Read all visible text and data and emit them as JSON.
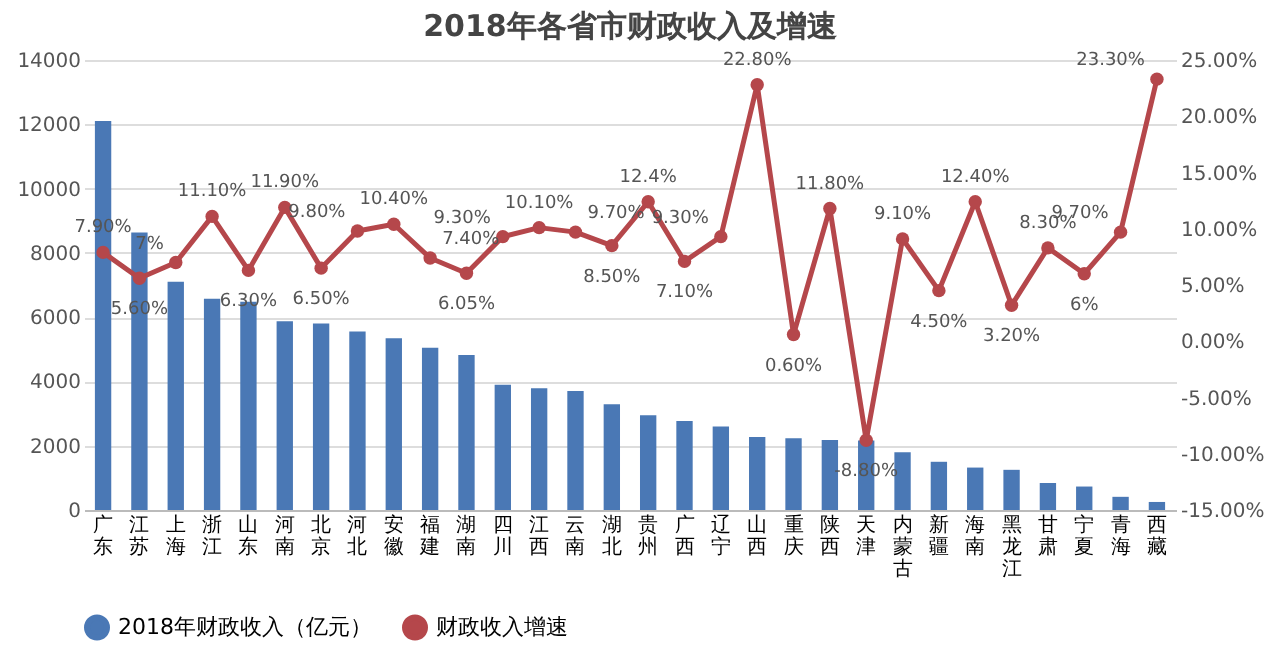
{
  "chart_data": {
    "type": "bar",
    "title": "2018年各省市财政收入及增速",
    "categories": [
      "广东",
      "江苏",
      "上海",
      "浙江",
      "山东",
      "河南",
      "北京",
      "河北",
      "安徽",
      "福建",
      "湖南",
      "四川",
      "江西",
      "云南",
      "湖北",
      "贵州",
      "广西",
      "辽宁",
      "山西",
      "重庆",
      "陕西",
      "天津",
      "内蒙古",
      "新疆",
      "海南",
      "黑龙江",
      "甘肃",
      "宁夏",
      "青海",
      "西藏"
    ],
    "series": [
      {
        "name": "2018年财政收入（亿元）",
        "color": "#4a78b5",
        "values": [
          12100,
          8630,
          7100,
          6570,
          6480,
          5870,
          5800,
          5550,
          5340,
          5050,
          4820,
          3900,
          3790,
          3700,
          3290,
          2950,
          2770,
          2600,
          2270,
          2230,
          2180,
          2160,
          1800,
          1500,
          1320,
          1250,
          840,
          730,
          410,
          250
        ]
      },
      {
        "name": "财政收入增速",
        "type": "line",
        "axis": "y2",
        "color": "#b5474b",
        "marker": "circle",
        "values": [
          7.9,
          5.6,
          7,
          11.1,
          6.3,
          11.9,
          6.5,
          9.8,
          10.4,
          7.4,
          6.05,
          9.3,
          10.1,
          9.7,
          8.5,
          12.4,
          7.1,
          9.3,
          22.8,
          0.6,
          11.8,
          -8.8,
          9.1,
          4.5,
          12.4,
          3.2,
          8.3,
          6,
          9.7,
          23.3
        ],
        "value_labels": [
          "7.90%",
          "5.60%",
          "7%",
          "11.10%",
          "6.30%",
          "11.90%",
          "6.50%",
          "9.80%",
          "10.40%",
          "7.40%",
          "6.05%",
          "9.30%",
          "10.10%",
          "9.70%",
          "8.50%",
          "12.4%",
          "7.10%",
          "9.30%",
          "22.80%",
          "0.60%",
          "11.80%",
          "-8.80%",
          "9.10%",
          "4.50%",
          "12.40%",
          "3.20%",
          "8.30%",
          "6%",
          "9.70%",
          "23.30%"
        ]
      }
    ],
    "ylim": [
      0,
      14000
    ],
    "yticks": [
      0,
      2000,
      4000,
      6000,
      8000,
      10000,
      12000,
      14000
    ],
    "y2lim": [
      -15,
      25
    ],
    "y2ticks": [
      {
        "value": -15,
        "label": "-15.00%"
      },
      {
        "value": -10,
        "label": "-10.00%"
      },
      {
        "value": -5,
        "label": "-5.00%"
      },
      {
        "value": 0,
        "label": "0.00%"
      },
      {
        "value": 5,
        "label": "5.00%"
      },
      {
        "value": 10,
        "label": "10.00%"
      },
      {
        "value": 15,
        "label": "15.00%"
      },
      {
        "value": 20,
        "label": "20.00%"
      },
      {
        "value": 25,
        "label": "25.00%"
      }
    ],
    "grid": "y",
    "legend": "bottom"
  }
}
